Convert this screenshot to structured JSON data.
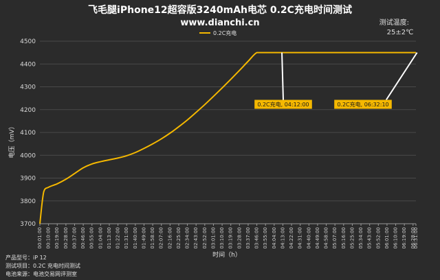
{
  "chart_data": {
    "type": "line",
    "title": "飞毛腿iPhone12超容版3240mAh电芯 0.2C充电时间测试",
    "subtitle": "www.dianchi.cn",
    "xlabel": "时间（h）",
    "ylabel": "电压（mV）",
    "ylim": [
      3700,
      4500
    ],
    "yticks": [
      3700,
      3800,
      3900,
      4000,
      4100,
      4200,
      4300,
      4400,
      4500
    ],
    "xlim_minutes": [
      1,
      391
    ],
    "x_tick_labels": [
      "00:01:00",
      "00:10:00",
      "00:19:00",
      "00:28:00",
      "00:37:00",
      "00:46:00",
      "00:55:00",
      "01:04:00",
      "01:13:00",
      "01:22:00",
      "01:31:00",
      "01:40:00",
      "01:49:00",
      "01:58:00",
      "02:07:00",
      "02:16:00",
      "02:25:00",
      "02:34:00",
      "02:43:00",
      "02:52:00",
      "03:01:00",
      "03:10:00",
      "03:19:00",
      "03:28:00",
      "03:37:00",
      "03:46:00",
      "03:55:00",
      "04:04:00",
      "04:13:00",
      "04:22:00",
      "04:31:00",
      "04:40:00",
      "04:49:00",
      "04:58:00",
      "05:07:00",
      "05:16:00",
      "05:25:00",
      "05:34:00",
      "05:43:00",
      "05:52:00",
      "06:01:00",
      "06:10:00",
      "06:19:00",
      "06:28:00",
      "06:31:00"
    ],
    "grid": true,
    "legend_position": "top-center",
    "series": [
      {
        "name": "0.2C充电",
        "color": "#f5b800",
        "x": [
          "00:01:00",
          "00:05:00",
          "00:10:00",
          "00:19:00",
          "00:28:00",
          "00:37:00",
          "00:46:00",
          "00:55:00",
          "01:04:00",
          "01:13:00",
          "01:22:00",
          "01:31:00",
          "01:40:00",
          "01:49:00",
          "01:58:00",
          "02:07:00",
          "02:16:00",
          "02:25:00",
          "02:34:00",
          "02:43:00",
          "02:52:00",
          "03:01:00",
          "03:10:00",
          "03:19:00",
          "03:28:00",
          "03:37:00",
          "03:46:00",
          "03:55:00",
          "04:04:00",
          "04:12:00",
          "04:22:00",
          "04:31:00",
          "04:40:00",
          "04:49:00",
          "04:58:00",
          "05:07:00",
          "05:16:00",
          "05:25:00",
          "05:34:00",
          "05:43:00",
          "05:52:00",
          "06:01:00",
          "06:10:00",
          "06:19:00",
          "06:28:00",
          "06:31:00"
        ],
        "y": [
          3700,
          3840,
          3860,
          3875,
          3895,
          3920,
          3945,
          3962,
          3972,
          3980,
          3988,
          3998,
          4012,
          4030,
          4050,
          4072,
          4097,
          4125,
          4155,
          4188,
          4222,
          4258,
          4295,
          4333,
          4372,
          4412,
          4450,
          4450,
          4450,
          4450,
          4450,
          4450,
          4450,
          4450,
          4450,
          4450,
          4450,
          4450,
          4450,
          4450,
          4450,
          4450,
          4450,
          4450,
          4450,
          4450
        ]
      }
    ],
    "annotations": [
      {
        "text": "0.2C充电, 04:12:00",
        "x": "04:12:00",
        "y": 4450
      },
      {
        "text": "0.2C充电, 06:32:10",
        "x": "06:32:10",
        "y": 4450
      }
    ]
  },
  "header": {
    "temperature_label": "测试温度:",
    "temperature_value": "25±2℃"
  },
  "footer": {
    "lines": [
      "产品型号：iP 12",
      "测试项目：0.2C 充电时间测试",
      "电池来源：电池交易网评测室"
    ]
  }
}
